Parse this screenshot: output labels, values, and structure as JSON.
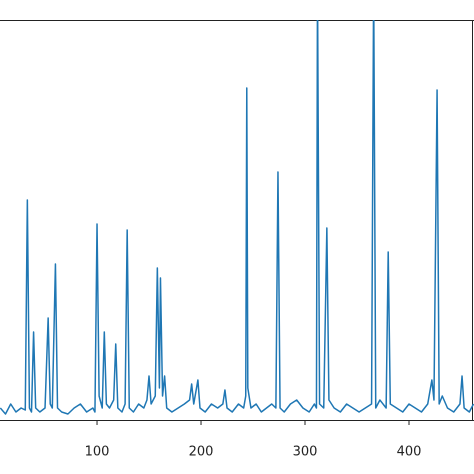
{
  "chart_data": {
    "type": "line",
    "x": [
      7,
      12,
      17,
      22,
      27,
      31,
      33,
      35,
      37,
      39,
      41,
      45,
      50,
      53,
      55,
      57,
      60,
      62,
      66,
      72,
      78,
      84,
      90,
      96,
      98,
      100,
      102,
      105,
      107,
      109,
      112,
      116,
      118,
      120,
      124,
      127,
      129,
      131,
      135,
      140,
      145,
      148,
      150,
      152,
      156,
      158,
      160,
      161,
      163,
      165,
      167,
      172,
      178,
      184,
      189,
      191,
      193,
      197,
      199,
      204,
      210,
      216,
      221,
      223,
      225,
      230,
      236,
      241,
      243,
      244,
      245,
      248,
      253,
      258,
      263,
      268,
      272,
      274,
      276,
      280,
      286,
      292,
      298,
      304,
      309,
      311,
      312,
      314,
      318,
      321,
      323,
      328,
      334,
      340,
      346,
      352,
      358,
      364,
      366,
      368,
      372,
      378,
      380,
      382,
      388,
      394,
      400,
      406,
      412,
      418,
      422,
      424,
      427,
      429,
      432,
      437,
      443,
      449,
      451,
      453,
      458,
      462
    ],
    "series": [
      {
        "color": "#1f77b4",
        "values": [
          3,
          1.5,
          4,
          2,
          3,
          2.5,
          55,
          3,
          2,
          22,
          3,
          2,
          3,
          25.5,
          4,
          3,
          39,
          3,
          2,
          1.5,
          3,
          4,
          2,
          3,
          2,
          49,
          6,
          3,
          22,
          4,
          3,
          5,
          19,
          3,
          2,
          4,
          47.5,
          3,
          2,
          4,
          3,
          5,
          11,
          4,
          6,
          38,
          8,
          35.5,
          6,
          11,
          3,
          2,
          3,
          4,
          5,
          9,
          4,
          10,
          3,
          2,
          4,
          3,
          4,
          7.5,
          3,
          2,
          4,
          3,
          6,
          83,
          8,
          3,
          4,
          2,
          3,
          4,
          3,
          62,
          3,
          2,
          4,
          5,
          3,
          2,
          4,
          3,
          110,
          4,
          3,
          48,
          5,
          3,
          2,
          4,
          3,
          2,
          3,
          4,
          110,
          3,
          5,
          3,
          42,
          4,
          3,
          2,
          4,
          3,
          2,
          4,
          10,
          5,
          82.5,
          4,
          6,
          3,
          2,
          4,
          11,
          3,
          2,
          4
        ]
      }
    ],
    "xlim": [
      6.7,
      462.5
    ],
    "xticks": [
      100,
      200,
      300,
      400
    ],
    "ylim": [
      0,
      100
    ]
  }
}
